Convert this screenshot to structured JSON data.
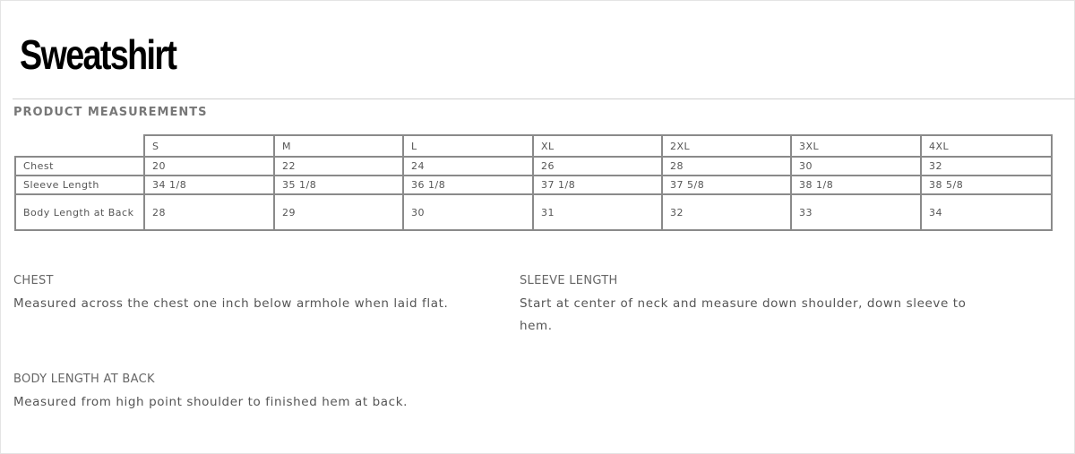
{
  "title": "Sweatshirt",
  "section_title": "PRODUCT MEASUREMENTS",
  "table": {
    "sizes": [
      "S",
      "M",
      "L",
      "XL",
      "2XL",
      "3XL",
      "4XL"
    ],
    "rows": [
      {
        "label": "Chest",
        "values": [
          "20",
          "22",
          "24",
          "26",
          "28",
          "30",
          "32"
        ]
      },
      {
        "label": "Sleeve Length",
        "values": [
          "34 1/8",
          "35 1/8",
          "36 1/8",
          "37 1/8",
          "37 5/8",
          "38 1/8",
          "38 5/8"
        ]
      },
      {
        "label": "Body Length at Back",
        "values": [
          "28",
          "29",
          "30",
          "31",
          "32",
          "33",
          "34"
        ]
      }
    ]
  },
  "notes": {
    "chest": {
      "heading": "CHEST",
      "text": "Measured across the chest one inch below armhole when laid flat."
    },
    "sleeve": {
      "heading": "SLEEVE LENGTH",
      "text": "Start at center of neck and measure down shoulder, down sleeve to hem."
    },
    "body": {
      "heading": "BODY LENGTH AT BACK",
      "text": "Measured from high point shoulder to finished hem at back."
    }
  }
}
